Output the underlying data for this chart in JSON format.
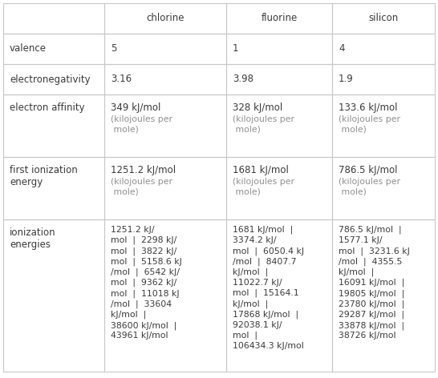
{
  "col_labels": [
    "",
    "chlorine",
    "fluorine",
    "silicon"
  ],
  "row_labels": [
    "valence",
    "electronegativity",
    "electron affinity",
    "first ionization\nenergy",
    "ionization\nenergies"
  ],
  "simple_rows": [
    [
      "5",
      "1",
      "4"
    ],
    [
      "3.16",
      "3.98",
      "1.9"
    ]
  ],
  "affinity_bold": [
    "349 kJ/mol",
    "328 kJ/mol",
    "133.6 kJ/mol"
  ],
  "affinity_sub": [
    "(kilojoules per\n mole)",
    "(kilojoules per\n mole)",
    "(kilojoules per\n mole)"
  ],
  "ioniz1_bold": [
    "1251.2 kJ/mol",
    "1681 kJ/mol",
    "786.5 kJ/mol"
  ],
  "ioniz1_sub": [
    "(kilojoules per\n mole)",
    "(kilojoules per\n mole)",
    "(kilojoules per\n mole)"
  ],
  "ioniz_energies_cl": "1251.2 kJ/\nmol  |  2298 kJ/\nmol  |  3822 kJ/\nmol  |  5158.6 kJ\n/mol  |  6542 kJ/\nmol  |  9362 kJ/\nmol  |  11018 kJ\n/mol  |  33604\nkJ/mol  |\n38600 kJ/mol  |\n43961 kJ/mol",
  "ioniz_energies_f": "1681 kJ/mol  |\n3374.2 kJ/\nmol  |  6050.4 kJ\n/mol  |  8407.7\nkJ/mol  |\n11022.7 kJ/\nmol  |  15164.1\nkJ/mol  |\n17868 kJ/mol  |\n92038.1 kJ/\nmol  |\n106434.3 kJ/mol",
  "ioniz_energies_si": "786.5 kJ/mol  |\n1577.1 kJ/\nmol  |  3231.6 kJ\n/mol  |  4355.5\nkJ/mol  |\n16091 kJ/mol  |\n19805 kJ/mol  |\n23780 kJ/mol  |\n29287 kJ/mol  |\n33878 kJ/mol  |\n38726 kJ/mol",
  "bg_color": "#ffffff",
  "grid_color": "#c8c8c8",
  "text_color": "#3a3a3a",
  "subtext_color": "#909090",
  "font_size": 8.5,
  "sub_font_size": 7.8
}
